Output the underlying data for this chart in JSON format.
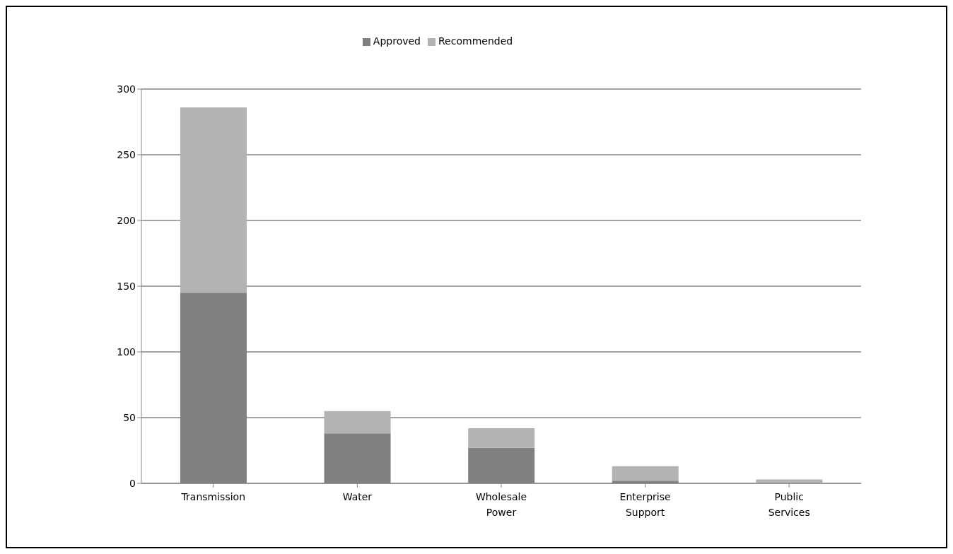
{
  "chart_data": {
    "type": "bar",
    "stacked": true,
    "categories": [
      "Transmission",
      "Water",
      "Wholesale Power",
      "Enterprise Support",
      "Public Services"
    ],
    "series": [
      {
        "name": "Approved",
        "color": "#808080",
        "values": [
          145,
          38,
          27,
          2,
          0
        ]
      },
      {
        "name": "Recommended",
        "color": "#b3b3b3",
        "values": [
          141,
          17,
          15,
          11,
          3
        ]
      }
    ],
    "ylim": [
      0,
      300
    ],
    "yticks": [
      0,
      50,
      100,
      150,
      200,
      250,
      300
    ],
    "grid": "y",
    "legend": "top"
  }
}
